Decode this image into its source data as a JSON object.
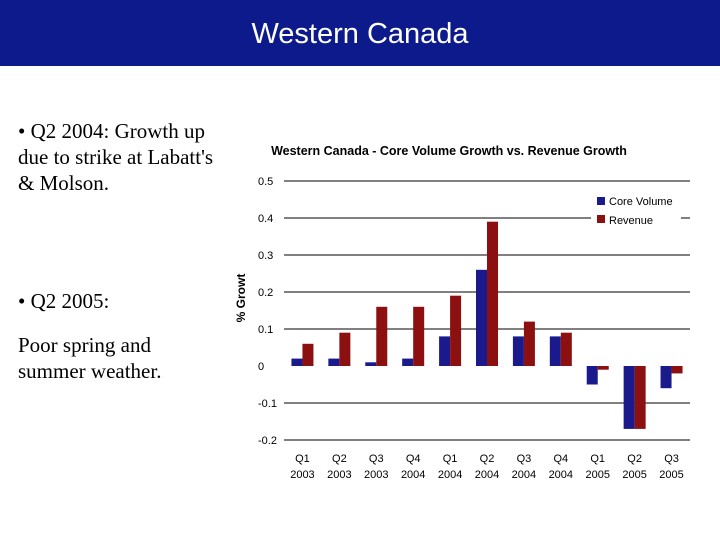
{
  "slide": {
    "title": "Western Canada",
    "bullets": [
      "• Q2 2004: Growth up due to strike at Labatt's & Molson.",
      "• Q2 2005:",
      "Poor spring and summer weather."
    ]
  },
  "chart_data": {
    "type": "bar",
    "title": "Western Canada - Core Volume Growth vs. Revenue Growth",
    "xlabel": "",
    "ylabel": "% Growt",
    "ylim": [
      -0.2,
      0.5
    ],
    "yticks": [
      -0.2,
      -0.1,
      0,
      0.1,
      0.2,
      0.3,
      0.4,
      0.5
    ],
    "ytick_labels": [
      "-0.2",
      "-0.1",
      "0",
      "0.1",
      "0.2",
      "0.3",
      "0.4",
      "0.5"
    ],
    "grid": true,
    "legend_position": "top-right",
    "categories": [
      {
        "quarter": "Q1",
        "year": "2003"
      },
      {
        "quarter": "Q2",
        "year": "2003"
      },
      {
        "quarter": "Q3",
        "year": "2003"
      },
      {
        "quarter": "Q4",
        "year": "2004"
      },
      {
        "quarter": "Q1",
        "year": "2004"
      },
      {
        "quarter": "Q2",
        "year": "2004"
      },
      {
        "quarter": "Q3",
        "year": "2004"
      },
      {
        "quarter": "Q4",
        "year": "2004"
      },
      {
        "quarter": "Q1",
        "year": "2005"
      },
      {
        "quarter": "Q2",
        "year": "2005"
      },
      {
        "quarter": "Q3",
        "year": "2005"
      }
    ],
    "series": [
      {
        "name": "Core Volume",
        "color": "#1a1a8c",
        "values": [
          0.02,
          0.02,
          0.01,
          0.02,
          0.08,
          0.26,
          0.08,
          0.08,
          -0.05,
          -0.17,
          -0.06
        ]
      },
      {
        "name": "Revenue",
        "color": "#8c1010",
        "values": [
          0.06,
          0.09,
          0.16,
          0.16,
          0.19,
          0.39,
          0.12,
          0.09,
          -0.01,
          -0.17,
          -0.02
        ]
      }
    ]
  }
}
